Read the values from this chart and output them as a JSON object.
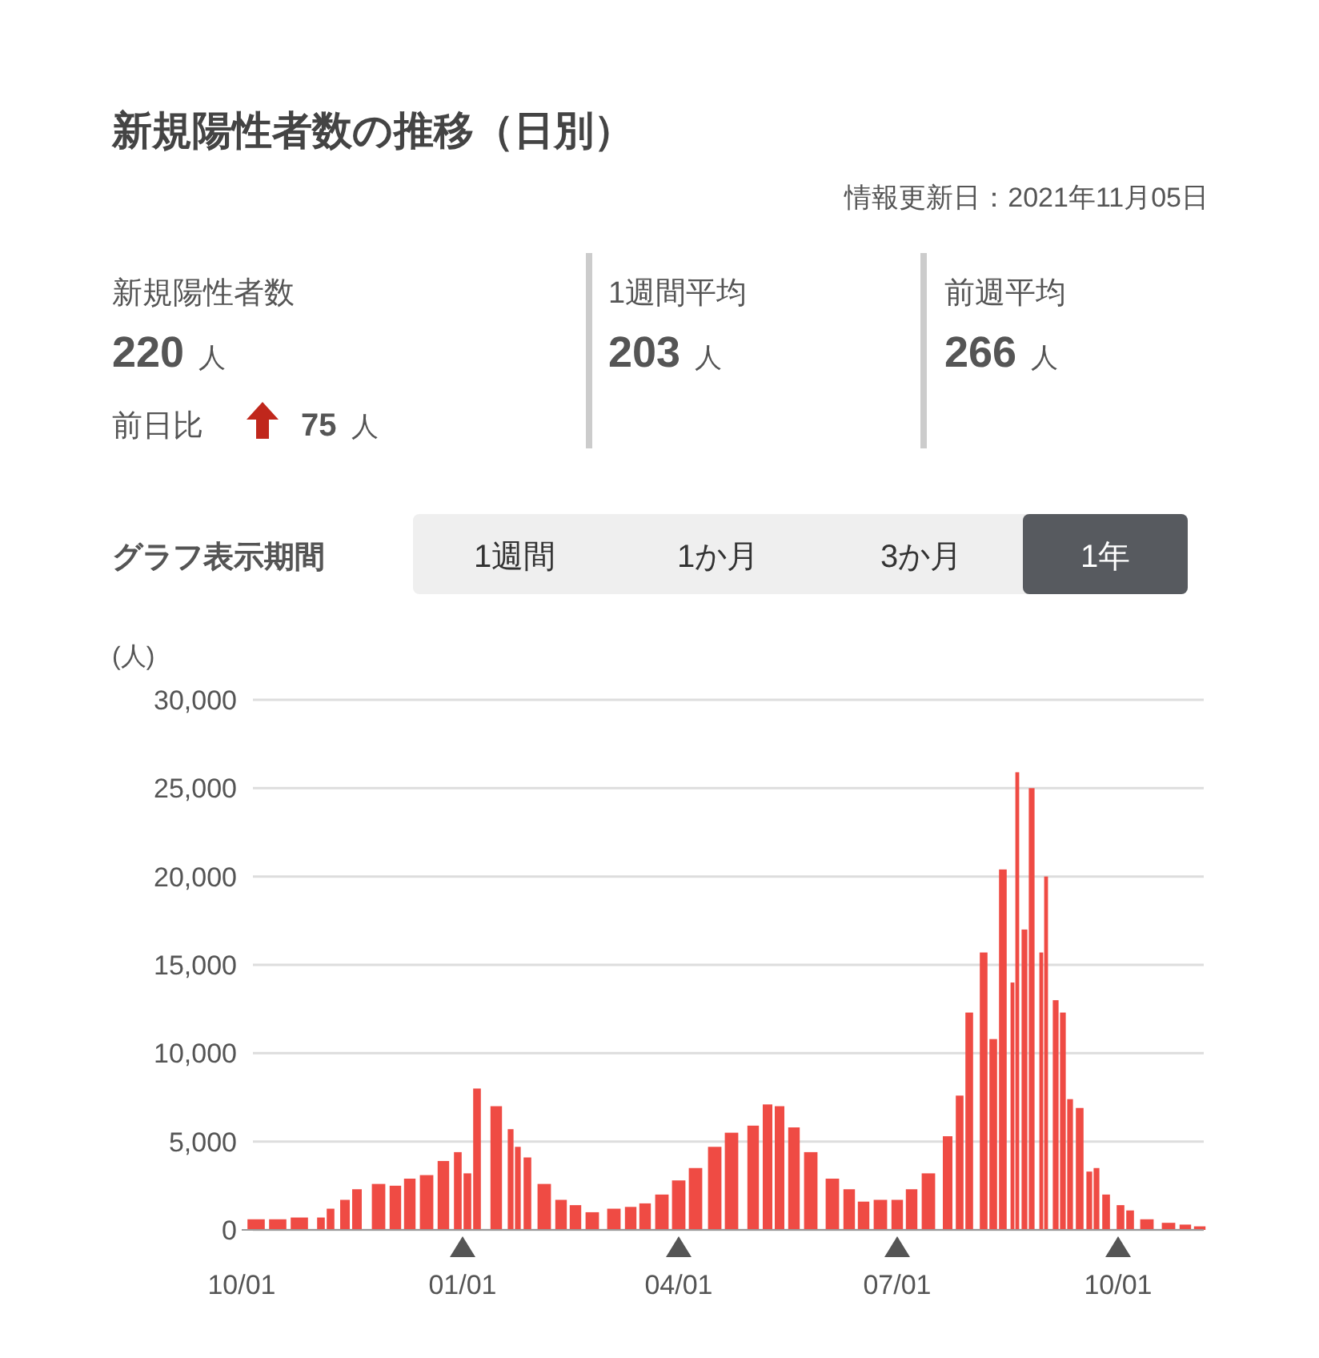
{
  "chart_data": {
    "type": "bar",
    "title": "新規陽性者数の推移（日別）",
    "subtitle": "情報更新日：2021年11月05日",
    "ylabel": "(人)",
    "annotations": [
      "新規陽性者数",
      "220 人",
      "前日比",
      "75 人",
      "1週間平均",
      "203 人",
      "前週平均",
      "266 人",
      "グラフ表示期間",
      "1週間",
      "1か月",
      "3か月",
      "1年"
    ],
    "x": [
      "2020-10-07",
      "2020-10-16",
      "2020-10-25",
      "2020-11-03",
      "2020-11-07",
      "2020-11-13",
      "2020-11-18",
      "2020-11-27",
      "2020-12-04",
      "2020-12-10",
      "2020-12-17",
      "2020-12-24",
      "2020-12-30",
      "2021-01-03",
      "2021-01-07",
      "2021-01-15",
      "2021-01-21",
      "2021-01-24",
      "2021-01-28",
      "2021-02-04",
      "2021-02-11",
      "2021-02-17",
      "2021-02-24",
      "2021-03-05",
      "2021-03-12",
      "2021-03-18",
      "2021-03-25",
      "2021-04-01",
      "2021-04-08",
      "2021-04-16",
      "2021-04-23",
      "2021-05-02",
      "2021-05-08",
      "2021-05-13",
      "2021-05-19",
      "2021-05-26",
      "2021-06-04",
      "2021-06-11",
      "2021-06-17",
      "2021-06-24",
      "2021-07-01",
      "2021-07-07",
      "2021-07-14",
      "2021-07-22",
      "2021-07-27",
      "2021-07-31",
      "2021-08-06",
      "2021-08-10",
      "2021-08-14",
      "2021-08-18",
      "2021-08-20",
      "2021-08-23",
      "2021-08-26",
      "2021-08-30",
      "2021-09-01",
      "2021-09-05",
      "2021-09-08",
      "2021-09-11",
      "2021-09-15",
      "2021-09-19",
      "2021-09-22",
      "2021-09-26",
      "2021-10-02",
      "2021-10-06",
      "2021-10-13",
      "2021-10-22",
      "2021-10-29",
      "2021-11-04"
    ],
    "values": [
      600,
      600,
      700,
      700,
      1200,
      1700,
      2300,
      2600,
      2500,
      2900,
      3100,
      3900,
      4400,
      3200,
      8000,
      7000,
      5700,
      4700,
      4100,
      2600,
      1700,
      1400,
      1000,
      1200,
      1300,
      1500,
      2000,
      2800,
      3500,
      4700,
      5500,
      5900,
      7100,
      7000,
      5800,
      4400,
      2900,
      2300,
      1600,
      1700,
      1700,
      2300,
      3200,
      5300,
      7600,
      12300,
      15700,
      10800,
      20400,
      14000,
      25900,
      17000,
      25000,
      15700,
      20000,
      13000,
      12300,
      7400,
      6900,
      3300,
      3500,
      2000,
      1400,
      1100,
      600,
      400,
      300,
      200
    ],
    "color": "#ef4b44",
    "xlim": [
      "2020-10-01",
      "2021-11-05"
    ],
    "xticks": [
      {
        "value": "2020-10-01",
        "label": "10/01"
      },
      {
        "value": "2021-01-01",
        "label": "01/01"
      },
      {
        "value": "2021-04-01",
        "label": "04/01"
      },
      {
        "value": "2021-07-01",
        "label": "07/01"
      },
      {
        "value": "2021-10-01",
        "label": "10/01"
      }
    ],
    "ylim": [
      0,
      30000
    ],
    "yticks": [
      0,
      {
        "value": 5000,
        "label": "5,000"
      },
      {
        "value": 10000,
        "label": "10,000"
      },
      {
        "value": 15000,
        "label": "15,000"
      },
      {
        "value": 20000,
        "label": "20,000"
      },
      {
        "value": 25000,
        "label": "25,000"
      },
      {
        "value": 30000,
        "label": "30,000"
      }
    ],
    "grid": "y"
  }
}
